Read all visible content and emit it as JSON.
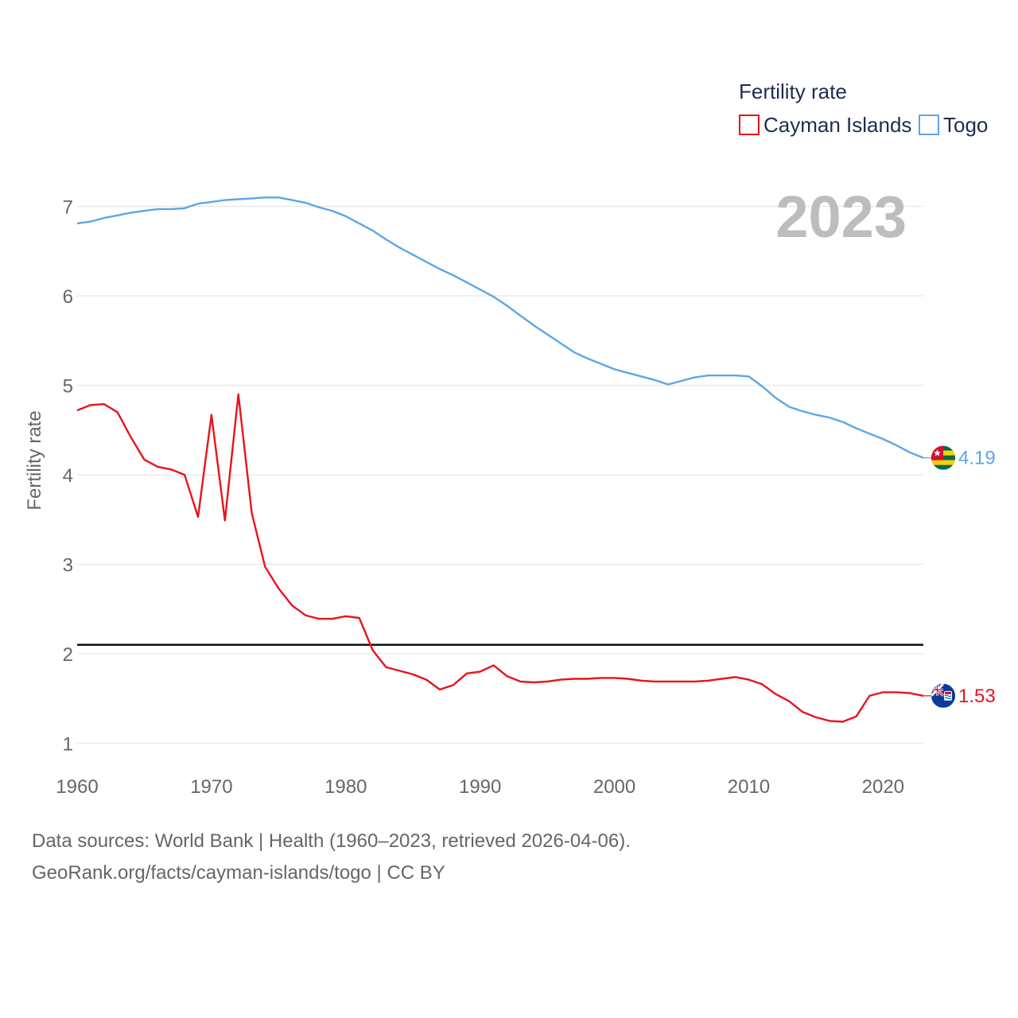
{
  "chart_data": {
    "type": "line",
    "ylabel": "Fertility rate",
    "xlim": [
      1960,
      2023
    ],
    "ylim": [
      0.75,
      7.5
    ],
    "y_ticks": [
      1,
      2,
      3,
      4,
      5,
      6,
      7
    ],
    "x_ticks": [
      1960,
      1970,
      1980,
      1990,
      2000,
      2010,
      2020
    ],
    "reference_line": 2.1,
    "year_label": "2023",
    "legend": {
      "title": "Fertility rate",
      "position": "top-right"
    },
    "x": [
      1960,
      1961,
      1962,
      1963,
      1964,
      1965,
      1966,
      1967,
      1968,
      1969,
      1970,
      1971,
      1972,
      1973,
      1974,
      1975,
      1976,
      1977,
      1978,
      1979,
      1980,
      1981,
      1982,
      1983,
      1984,
      1985,
      1986,
      1987,
      1988,
      1989,
      1990,
      1991,
      1992,
      1993,
      1994,
      1995,
      1996,
      1997,
      1998,
      1999,
      2000,
      2001,
      2002,
      2003,
      2004,
      2005,
      2006,
      2007,
      2008,
      2009,
      2010,
      2011,
      2012,
      2013,
      2014,
      2015,
      2016,
      2017,
      2018,
      2019,
      2020,
      2021,
      2022,
      2023
    ],
    "series": [
      {
        "name": "Cayman Islands",
        "color": "#e8141b",
        "flag": "cayman-islands-flag-icon",
        "end_label": "1.53",
        "values": [
          4.72,
          4.78,
          4.79,
          4.7,
          4.42,
          4.17,
          4.09,
          4.06,
          4.0,
          3.53,
          4.67,
          3.49,
          4.9,
          3.57,
          2.97,
          2.73,
          2.54,
          2.43,
          2.39,
          2.39,
          2.42,
          2.4,
          2.04,
          1.85,
          1.81,
          1.77,
          1.71,
          1.6,
          1.65,
          1.78,
          1.8,
          1.87,
          1.75,
          1.69,
          1.68,
          1.69,
          1.71,
          1.72,
          1.72,
          1.73,
          1.73,
          1.72,
          1.7,
          1.69,
          1.69,
          1.69,
          1.69,
          1.7,
          1.72,
          1.74,
          1.71,
          1.66,
          1.55,
          1.47,
          1.35,
          1.29,
          1.25,
          1.24,
          1.3,
          1.53,
          1.57,
          1.57,
          1.56,
          1.53
        ]
      },
      {
        "name": "Togo",
        "color": "#5ea5e8",
        "flag": "togo-flag-icon",
        "end_label": "4.19",
        "values": [
          6.81,
          6.83,
          6.87,
          6.9,
          6.93,
          6.95,
          6.97,
          6.97,
          6.98,
          7.03,
          7.05,
          7.07,
          7.08,
          7.09,
          7.1,
          7.1,
          7.07,
          7.04,
          6.99,
          6.95,
          6.89,
          6.81,
          6.73,
          6.63,
          6.54,
          6.46,
          6.38,
          6.3,
          6.23,
          6.15,
          6.07,
          5.99,
          5.89,
          5.78,
          5.67,
          5.57,
          5.47,
          5.37,
          5.3,
          5.24,
          5.18,
          5.14,
          5.1,
          5.06,
          5.01,
          5.05,
          5.09,
          5.11,
          5.11,
          5.11,
          5.1,
          4.99,
          4.86,
          4.76,
          4.71,
          4.67,
          4.64,
          4.59,
          4.52,
          4.46,
          4.4,
          4.33,
          4.25,
          4.19
        ]
      }
    ]
  },
  "footer": {
    "line1": "Data sources: World Bank | Health (1960–2023, retrieved 2026-04-06).",
    "line2": "GeoRank.org/facts/cayman-islands/togo | CC BY"
  }
}
